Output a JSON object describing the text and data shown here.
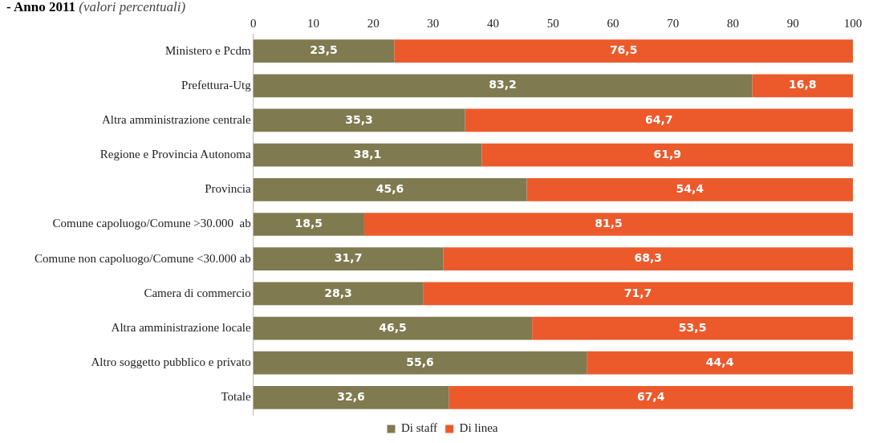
{
  "chart_data": {
    "type": "bar",
    "title": "- Anno 2011",
    "subtitle": "(valori percentuali)",
    "orientation": "horizontal",
    "stacked": true,
    "categories": [
      "Ministero e Pcdm",
      "Prefettura-Utg",
      "Altra amministrazione centrale",
      "Regione e Provincia Autonoma",
      "Provincia",
      "Comune capoluogo/Comune >30.000  ab",
      "Comune non capoluogo/Comune <30.000 ab",
      "Camera di commercio",
      "Altra amministrazione locale",
      "Altro soggetto pubblico e privato",
      "Totale"
    ],
    "series": [
      {
        "name": "Di staff",
        "color": "#7f7a4f",
        "values": [
          23.5,
          83.2,
          35.3,
          38.1,
          45.6,
          18.5,
          31.7,
          28.3,
          46.5,
          55.6,
          32.6
        ],
        "value_labels": [
          "23,5",
          "83,2",
          "35,3",
          "38,1",
          "45,6",
          "18,5",
          "31,7",
          "28,3",
          "46,5",
          "55,6",
          "32,6"
        ]
      },
      {
        "name": "Di linea",
        "color": "#ec5a2c",
        "values": [
          76.5,
          16.8,
          64.7,
          61.9,
          54.4,
          81.5,
          68.3,
          71.7,
          53.5,
          44.4,
          67.4
        ],
        "value_labels": [
          "76,5",
          "16,8",
          "64,7",
          "61,9",
          "54,4",
          "81,5",
          "68,3",
          "71,7",
          "53,5",
          "44,4",
          "67,4"
        ]
      }
    ],
    "xlim": [
      0,
      100
    ],
    "xticks": [
      0,
      10,
      20,
      30,
      40,
      50,
      60,
      70,
      80,
      90,
      100
    ],
    "grid": false,
    "legend": "bottom"
  }
}
